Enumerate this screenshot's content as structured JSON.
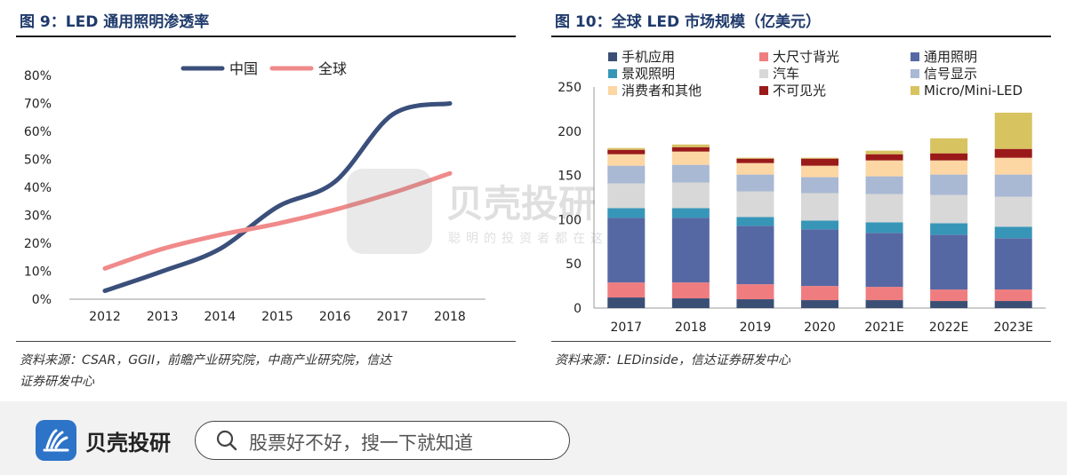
{
  "panel1": {
    "title": "图 9：LED 通用照明渗透率",
    "source_line1": "资料来源：CSAR，GGII，前瞻产业研究院，中商产业研究院，信达",
    "source_line2": "证券研发中心"
  },
  "panel2": {
    "title": "图 10：全球 LED 市场规模（亿美元）",
    "source_line1": "资料来源：LEDinside，信达证券研发中心"
  },
  "chart_data": [
    {
      "type": "line",
      "title": "LED 通用照明渗透率",
      "x": [
        "2012",
        "2013",
        "2014",
        "2015",
        "2016",
        "2017",
        "2018"
      ],
      "series": [
        {
          "name": "中国",
          "color": "#3a4f7a",
          "values": [
            3,
            10,
            18,
            33,
            42,
            66,
            70
          ]
        },
        {
          "name": "全球",
          "color": "#f08a8a",
          "values": [
            11,
            18,
            23,
            27,
            32,
            38,
            45
          ]
        }
      ],
      "yticks": [
        "0%",
        "10%",
        "20%",
        "30%",
        "40%",
        "50%",
        "60%",
        "70%",
        "80%"
      ],
      "ylim": [
        0,
        80
      ],
      "legend_position": "top-center"
    },
    {
      "type": "bar",
      "stacked": true,
      "title": "全球 LED 市场规模（亿美元）",
      "categories": [
        "2017",
        "2018",
        "2019",
        "2020",
        "2021E",
        "2022E",
        "2023E"
      ],
      "series": [
        {
          "name": "手机应用",
          "color": "#3b4f75",
          "values": [
            12,
            11,
            10,
            9,
            9,
            8,
            8
          ]
        },
        {
          "name": "大尺寸背光",
          "color": "#ef7d80",
          "values": [
            17,
            18,
            17,
            16,
            15,
            13,
            13
          ]
        },
        {
          "name": "通用照明",
          "color": "#5668a3",
          "values": [
            73,
            73,
            66,
            64,
            61,
            62,
            58
          ]
        },
        {
          "name": "景观照明",
          "color": "#3796b8",
          "values": [
            11,
            11,
            10,
            10,
            12,
            13,
            13
          ]
        },
        {
          "name": "汽车",
          "color": "#d8d8d8",
          "values": [
            28,
            29,
            29,
            31,
            32,
            32,
            34
          ]
        },
        {
          "name": "信号显示",
          "color": "#a9b8d3",
          "values": [
            20,
            20,
            19,
            18,
            20,
            23,
            25
          ]
        },
        {
          "name": "消费者和其他",
          "color": "#fcd6a3",
          "values": [
            13,
            15,
            13,
            13,
            18,
            16,
            19
          ]
        },
        {
          "name": "不可见光",
          "color": "#9a1a1a",
          "values": [
            5,
            5,
            5,
            8,
            7,
            8,
            10
          ]
        },
        {
          "name": "Micro/Mini-LED",
          "color": "#d7c360",
          "values": [
            2,
            3,
            1,
            1,
            4,
            17,
            41
          ]
        }
      ],
      "yticks": [
        "0",
        "50",
        "100",
        "150",
        "200",
        "250"
      ],
      "ylim": [
        0,
        250
      ]
    }
  ],
  "footer": {
    "brand": "贝壳投研",
    "search_placeholder": "股票好不好，搜一下就知道"
  },
  "watermark": {
    "title": "贝壳投研",
    "subtitle": "聪明的投资者都在这"
  }
}
